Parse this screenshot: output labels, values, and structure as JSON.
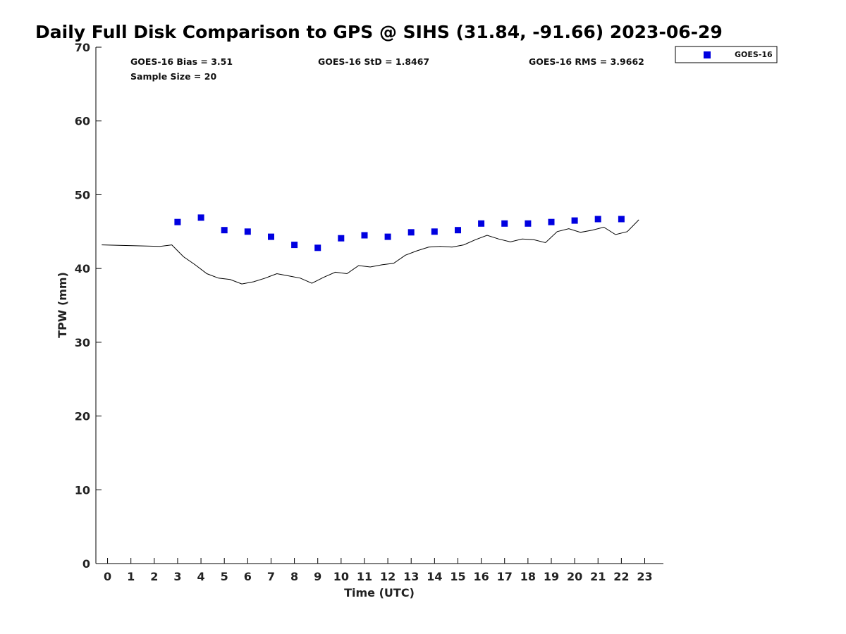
{
  "chart_data": {
    "type": "scatter",
    "title": "Daily Full Disk Comparison to GPS @ SIHS (31.84, -91.66) 2023-06-29",
    "xlabel": "Time (UTC)",
    "ylabel": "TPW (mm)",
    "xlim": [
      -0.5,
      23.8
    ],
    "ylim": [
      0,
      70
    ],
    "x_ticks": [
      0,
      1,
      2,
      3,
      4,
      5,
      6,
      7,
      8,
      9,
      10,
      11,
      12,
      13,
      14,
      15,
      16,
      17,
      18,
      19,
      20,
      21,
      22,
      23
    ],
    "y_ticks": [
      0,
      10,
      20,
      30,
      40,
      50,
      60,
      70
    ],
    "grid": false,
    "legend_position": "top-right, outside plot",
    "stats": {
      "bias": "GOES-16 Bias = 3.51",
      "sample_size": "Sample Size = 20",
      "std": "GOES-16 StD = 1.8467",
      "rms": "GOES-16 RMS = 3.9662"
    },
    "series": [
      {
        "name": "GOES-16",
        "kind": "scatter",
        "marker": "square",
        "color": "#0000e0",
        "x": [
          3,
          4,
          5,
          6,
          7,
          8,
          9,
          10,
          11,
          12,
          13,
          14,
          15,
          16,
          17,
          18,
          19,
          20,
          21,
          22
        ],
        "y": [
          46.3,
          46.9,
          45.2,
          45.0,
          44.3,
          43.2,
          42.8,
          44.1,
          44.5,
          44.3,
          44.9,
          45.0,
          45.2,
          46.1,
          46.1,
          46.1,
          46.3,
          46.5,
          46.7,
          46.7
        ]
      },
      {
        "kind": "line",
        "color": "#000000",
        "x": [
          -0.25,
          2.25,
          2.75,
          3.25,
          3.75,
          4.25,
          4.75,
          5.25,
          5.75,
          6.25,
          6.75,
          7.25,
          7.75,
          8.25,
          8.75,
          9.25,
          9.75,
          10.25,
          10.75,
          11.25,
          11.75,
          12.25,
          12.75,
          13.25,
          13.75,
          14.25,
          14.75,
          15.25,
          15.75,
          16.25,
          16.75,
          17.25,
          17.75,
          18.25,
          18.75,
          19.25,
          19.75,
          20.25,
          20.75,
          21.25,
          21.75,
          22.25,
          22.75
        ],
        "y": [
          43.2,
          43.0,
          43.2,
          41.6,
          40.5,
          39.3,
          38.7,
          38.5,
          37.9,
          38.2,
          38.7,
          39.3,
          39.0,
          38.7,
          38.0,
          38.8,
          39.5,
          39.3,
          40.4,
          40.2,
          40.5,
          40.7,
          41.8,
          42.4,
          42.9,
          43.0,
          42.9,
          43.2,
          43.9,
          44.5,
          44.0,
          43.6,
          44.0,
          43.9,
          43.5,
          45.0,
          45.4,
          44.9,
          45.2,
          45.6,
          44.6,
          45.0,
          46.6
        ]
      }
    ]
  }
}
